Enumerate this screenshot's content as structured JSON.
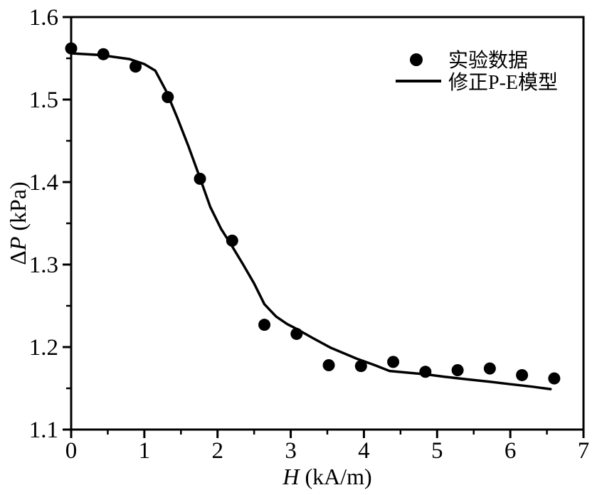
{
  "chart_data": {
    "type": "scatter",
    "title": "",
    "xlabel": {
      "italic": "H",
      "unit": " (kA/m)"
    },
    "ylabel": {
      "prefix": "Δ",
      "italic": "P",
      "unit": " (kPa)"
    },
    "xlim": [
      0,
      7
    ],
    "ylim": [
      1.1,
      1.6
    ],
    "x_major_ticks": [
      0,
      1,
      2,
      3,
      4,
      5,
      6,
      7
    ],
    "x_minor_ticks": [
      0.5,
      1.5,
      2.5,
      3.5,
      4.5,
      5.5,
      6.5
    ],
    "y_major_ticks": [
      1.1,
      1.2,
      1.3,
      1.4,
      1.5,
      1.6
    ],
    "y_minor_ticks": [
      1.15,
      1.25,
      1.35,
      1.45,
      1.55
    ],
    "y_tick_decimals": 1,
    "grid": false,
    "legend_position": "upper-right",
    "series": [
      {
        "name": "实验数据",
        "type": "scatter",
        "marker": "filled-circle",
        "color": "#000000",
        "x": [
          0.0,
          0.44,
          0.88,
          1.32,
          1.76,
          2.2,
          2.64,
          3.08,
          3.52,
          3.96,
          4.4,
          4.84,
          5.28,
          5.72,
          6.16,
          6.6
        ],
        "y": [
          1.562,
          1.555,
          1.54,
          1.503,
          1.404,
          1.329,
          1.227,
          1.216,
          1.178,
          1.177,
          1.182,
          1.17,
          1.172,
          1.174,
          1.166,
          1.162
        ]
      },
      {
        "name": "修正P-E模型",
        "type": "line",
        "color": "#000000",
        "x": [
          0.0,
          0.4,
          0.8,
          1.0,
          1.15,
          1.3,
          1.45,
          1.6,
          1.76,
          1.9,
          2.05,
          2.2,
          2.35,
          2.5,
          2.64,
          2.8,
          2.95,
          3.08,
          3.3,
          3.55,
          3.9,
          4.15,
          4.35,
          4.6,
          4.84,
          5.1,
          5.4,
          5.72,
          6.0,
          6.3,
          6.55
        ],
        "y": [
          1.556,
          1.554,
          1.549,
          1.543,
          1.535,
          1.51,
          1.478,
          1.444,
          1.405,
          1.37,
          1.343,
          1.322,
          1.3,
          1.277,
          1.252,
          1.237,
          1.228,
          1.222,
          1.211,
          1.199,
          1.186,
          1.178,
          1.171,
          1.169,
          1.167,
          1.164,
          1.161,
          1.158,
          1.155,
          1.152,
          1.149
        ]
      }
    ]
  },
  "colors": {
    "foreground": "#000000",
    "background": "#ffffff"
  }
}
